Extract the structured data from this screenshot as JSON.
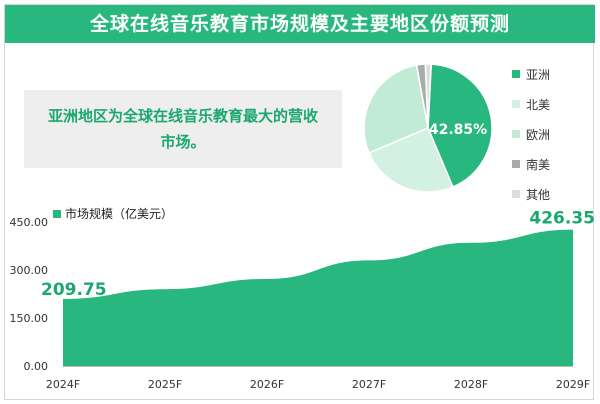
{
  "title": "全球在线音乐教育市场规模及主要地区份额预测",
  "note": "亚洲地区为全球在线音乐教育最大的营收市场。",
  "colors": {
    "title_bg": "#27b77f",
    "accent": "#27b77f",
    "label_green": "#1aa870"
  },
  "chart_data": [
    {
      "type": "pie",
      "series": [
        {
          "name": "亚洲",
          "value": 42.85,
          "color": "#27b77f"
        },
        {
          "name": "北美",
          "value": 25.0,
          "color": "#d3f1e2"
        },
        {
          "name": "欧洲",
          "value": 28.5,
          "color": "#c2ebd5"
        },
        {
          "name": "南美",
          "value": 2.2,
          "color": "#aaaaaa"
        },
        {
          "name": "其他",
          "value": 1.45,
          "color": "#dddddd"
        }
      ],
      "data_label": "42.85%",
      "legend_position": "right"
    },
    {
      "type": "area",
      "categories": [
        "2024F",
        "2025F",
        "2026F",
        "2027F",
        "2028F",
        "2029F"
      ],
      "series": [
        {
          "name": "市场规模（亿美元）",
          "values": [
            209.75,
            240,
            272,
            330,
            385,
            426.35
          ],
          "color": "#27b77f"
        }
      ],
      "yticks": [
        "0.00",
        "150.00",
        "300.00",
        "450.00"
      ],
      "ylim": [
        0,
        450
      ],
      "data_labels": [
        {
          "index": 0,
          "text": "209.75"
        },
        {
          "index": 5,
          "text": "426.35"
        }
      ],
      "legend_position": "top-left",
      "grid": false
    }
  ]
}
